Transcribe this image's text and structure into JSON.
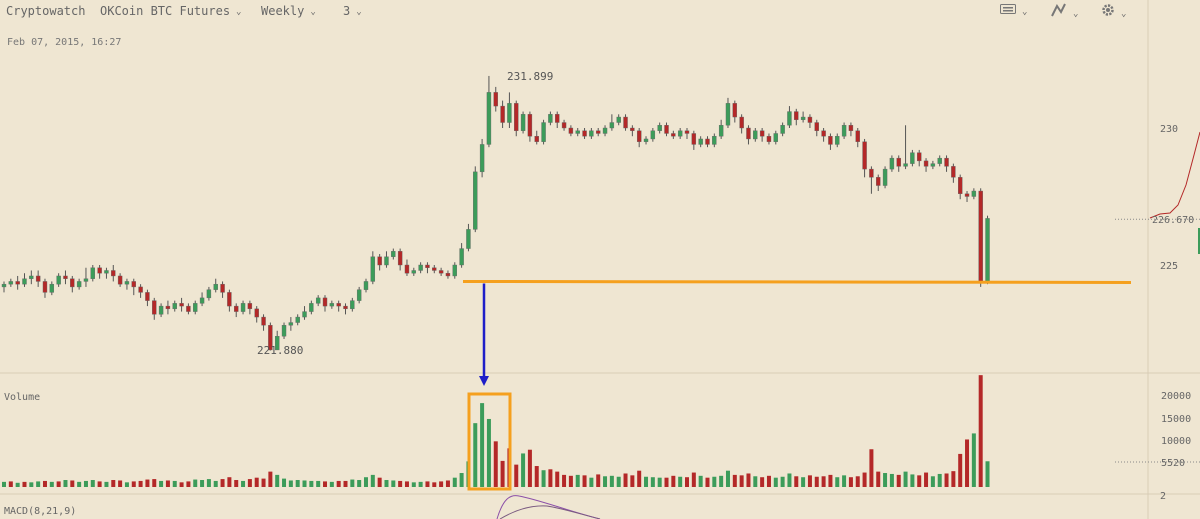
{
  "toolbar": {
    "brand": "Cryptowatch",
    "market": "OKCoin BTC Futures",
    "period": "Weekly",
    "zoom": "3",
    "icons": [
      "keyboard-icon",
      "draw-tool-icon",
      "settings-gear-icon"
    ]
  },
  "timestamp": "Feb 07, 2015, 16:27",
  "colors": {
    "up": "#3c9c5a",
    "down": "#b42828",
    "orange": "#f5a01e",
    "blue": "#1e1ec8",
    "macd": "#8b4fa8"
  },
  "chart_data": {
    "type": "candlestick",
    "price_ticks": [
      "230",
      "225"
    ],
    "last_price_label": "226.670",
    "high_annotation": "231.899",
    "low_annotation": "221.880",
    "support_level": 224.4,
    "volume_label": "Volume",
    "volume_ticks": [
      "20000",
      "15000",
      "10000",
      "5520"
    ],
    "macd_label": "MACD(8,21,9)",
    "macd_tick": "2",
    "candles": [
      [
        224.2,
        224.3,
        224.0,
        224.4
      ],
      [
        224.3,
        224.4,
        224.2,
        224.5
      ],
      [
        224.4,
        224.3,
        224.1,
        224.6
      ],
      [
        224.3,
        224.5,
        224.2,
        224.7
      ],
      [
        224.5,
        224.6,
        224.3,
        224.8
      ],
      [
        224.6,
        224.4,
        224.2,
        224.8
      ],
      [
        224.4,
        224.0,
        223.8,
        224.5
      ],
      [
        224.0,
        224.3,
        223.9,
        224.4
      ],
      [
        224.3,
        224.6,
        224.2,
        224.7
      ],
      [
        224.6,
        224.5,
        224.3,
        224.8
      ],
      [
        224.5,
        224.2,
        224.0,
        224.6
      ],
      [
        224.2,
        224.4,
        224.1,
        224.5
      ],
      [
        224.4,
        224.5,
        224.2,
        224.9
      ],
      [
        224.5,
        224.9,
        224.4,
        225.0
      ],
      [
        224.9,
        224.7,
        224.5,
        225.0
      ],
      [
        224.7,
        224.8,
        224.5,
        224.9
      ],
      [
        224.8,
        224.6,
        224.4,
        225.0
      ],
      [
        224.6,
        224.3,
        224.2,
        224.7
      ],
      [
        224.3,
        224.4,
        224.1,
        224.5
      ],
      [
        224.4,
        224.2,
        223.9,
        224.5
      ],
      [
        224.2,
        224.0,
        223.8,
        224.3
      ],
      [
        224.0,
        223.7,
        223.5,
        224.1
      ],
      [
        223.7,
        223.2,
        223.0,
        223.8
      ],
      [
        223.2,
        223.5,
        223.1,
        223.6
      ],
      [
        223.5,
        223.4,
        223.2,
        223.7
      ],
      [
        223.4,
        223.6,
        223.3,
        223.7
      ],
      [
        223.6,
        223.5,
        223.3,
        223.8
      ],
      [
        223.5,
        223.3,
        223.2,
        223.6
      ],
      [
        223.3,
        223.6,
        223.2,
        223.7
      ],
      [
        223.6,
        223.8,
        223.5,
        224.0
      ],
      [
        223.8,
        224.1,
        223.7,
        224.2
      ],
      [
        224.1,
        224.3,
        224.0,
        224.5
      ],
      [
        224.3,
        224.0,
        223.8,
        224.4
      ],
      [
        224.0,
        223.5,
        223.3,
        224.1
      ],
      [
        223.5,
        223.3,
        223.1,
        223.6
      ],
      [
        223.3,
        223.6,
        223.2,
        223.7
      ],
      [
        223.6,
        223.4,
        223.2,
        223.7
      ],
      [
        223.4,
        223.1,
        222.9,
        223.5
      ],
      [
        223.1,
        222.8,
        222.6,
        223.2
      ],
      [
        222.8,
        221.9,
        221.88,
        222.9
      ],
      [
        221.9,
        222.4,
        221.9,
        222.6
      ],
      [
        222.4,
        222.8,
        222.3,
        222.9
      ],
      [
        222.8,
        222.9,
        222.6,
        223.1
      ],
      [
        222.9,
        223.1,
        222.8,
        223.2
      ],
      [
        223.1,
        223.3,
        223.0,
        223.5
      ],
      [
        223.3,
        223.6,
        223.2,
        223.7
      ],
      [
        223.6,
        223.8,
        223.5,
        223.9
      ],
      [
        223.8,
        223.5,
        223.3,
        223.9
      ],
      [
        223.5,
        223.6,
        223.4,
        223.7
      ],
      [
        223.6,
        223.5,
        223.3,
        223.7
      ],
      [
        223.5,
        223.4,
        223.2,
        223.6
      ],
      [
        223.4,
        223.7,
        223.3,
        223.8
      ],
      [
        223.7,
        224.1,
        223.6,
        224.2
      ],
      [
        224.1,
        224.4,
        224.0,
        224.5
      ],
      [
        224.4,
        225.3,
        224.3,
        225.5
      ],
      [
        225.3,
        225.0,
        224.8,
        225.4
      ],
      [
        225.0,
        225.3,
        224.9,
        225.5
      ],
      [
        225.3,
        225.5,
        225.2,
        225.6
      ],
      [
        225.5,
        225.0,
        224.8,
        225.6
      ],
      [
        225.0,
        224.7,
        224.6,
        225.2
      ],
      [
        224.7,
        224.8,
        224.6,
        224.9
      ],
      [
        224.8,
        225.0,
        224.7,
        225.1
      ],
      [
        225.0,
        224.9,
        224.7,
        225.1
      ],
      [
        224.9,
        224.8,
        224.7,
        225.0
      ],
      [
        224.8,
        224.7,
        224.6,
        224.9
      ],
      [
        224.7,
        224.6,
        224.5,
        224.8
      ],
      [
        224.6,
        225.0,
        224.5,
        225.1
      ],
      [
        225.0,
        225.6,
        224.9,
        225.8
      ],
      [
        225.6,
        226.3,
        225.5,
        226.5
      ],
      [
        226.3,
        228.4,
        226.2,
        228.6
      ],
      [
        228.4,
        229.4,
        228.2,
        229.6
      ],
      [
        229.4,
        231.3,
        229.3,
        231.9
      ],
      [
        231.3,
        230.8,
        230.6,
        231.5
      ],
      [
        230.8,
        230.2,
        230.0,
        231.0
      ],
      [
        230.2,
        230.9,
        230.0,
        231.3
      ],
      [
        230.9,
        229.9,
        229.7,
        231.0
      ],
      [
        229.9,
        230.5,
        229.8,
        230.6
      ],
      [
        230.5,
        229.7,
        229.5,
        230.6
      ],
      [
        229.7,
        229.5,
        229.4,
        229.9
      ],
      [
        229.5,
        230.2,
        229.4,
        230.3
      ],
      [
        230.2,
        230.5,
        230.1,
        230.6
      ],
      [
        230.5,
        230.2,
        230.0,
        230.6
      ],
      [
        230.2,
        230.0,
        229.9,
        230.3
      ],
      [
        230.0,
        229.8,
        229.7,
        230.1
      ],
      [
        229.8,
        229.9,
        229.7,
        230.0
      ],
      [
        229.9,
        229.7,
        229.6,
        230.0
      ],
      [
        229.7,
        229.9,
        229.6,
        230.0
      ],
      [
        229.9,
        229.8,
        229.7,
        230.0
      ],
      [
        229.8,
        230.0,
        229.7,
        230.1
      ],
      [
        230.0,
        230.2,
        229.9,
        230.5
      ],
      [
        230.2,
        230.4,
        230.1,
        230.5
      ],
      [
        230.4,
        230.0,
        229.9,
        230.5
      ],
      [
        230.0,
        229.9,
        229.7,
        230.1
      ],
      [
        229.9,
        229.5,
        229.3,
        230.0
      ],
      [
        229.5,
        229.6,
        229.4,
        229.7
      ],
      [
        229.6,
        229.9,
        229.5,
        230.0
      ],
      [
        229.9,
        230.1,
        229.8,
        230.2
      ],
      [
        230.1,
        229.8,
        229.7,
        230.2
      ],
      [
        229.8,
        229.7,
        229.6,
        229.9
      ],
      [
        229.7,
        229.9,
        229.6,
        230.0
      ],
      [
        229.9,
        229.8,
        229.6,
        230.0
      ],
      [
        229.8,
        229.4,
        229.2,
        229.9
      ],
      [
        229.4,
        229.6,
        229.3,
        229.7
      ],
      [
        229.6,
        229.4,
        229.3,
        229.7
      ],
      [
        229.4,
        229.7,
        229.3,
        229.8
      ],
      [
        229.7,
        230.1,
        229.6,
        230.3
      ],
      [
        230.1,
        230.9,
        230.0,
        231.1
      ],
      [
        230.9,
        230.4,
        230.2,
        231.0
      ],
      [
        230.4,
        230.0,
        229.8,
        230.5
      ],
      [
        230.0,
        229.6,
        229.4,
        230.1
      ],
      [
        229.6,
        229.9,
        229.5,
        230.0
      ],
      [
        229.9,
        229.7,
        229.5,
        230.0
      ],
      [
        229.7,
        229.5,
        229.4,
        229.8
      ],
      [
        229.5,
        229.8,
        229.4,
        229.9
      ],
      [
        229.8,
        230.1,
        229.7,
        230.2
      ],
      [
        230.1,
        230.6,
        230.0,
        230.8
      ],
      [
        230.6,
        230.3,
        230.1,
        230.7
      ],
      [
        230.3,
        230.4,
        230.2,
        230.6
      ],
      [
        230.4,
        230.2,
        230.0,
        230.5
      ],
      [
        230.2,
        229.9,
        229.7,
        230.3
      ],
      [
        229.9,
        229.7,
        229.5,
        230.0
      ],
      [
        229.7,
        229.4,
        229.2,
        229.8
      ],
      [
        229.4,
        229.7,
        229.3,
        229.8
      ],
      [
        229.7,
        230.1,
        229.6,
        230.2
      ],
      [
        230.1,
        229.9,
        229.7,
        230.2
      ],
      [
        229.9,
        229.5,
        229.3,
        230.0
      ],
      [
        229.5,
        228.5,
        228.2,
        229.6
      ],
      [
        228.5,
        228.2,
        227.6,
        228.6
      ],
      [
        228.2,
        227.9,
        227.7,
        228.3
      ],
      [
        227.9,
        228.5,
        227.8,
        228.6
      ],
      [
        228.5,
        228.9,
        228.4,
        229.0
      ],
      [
        228.9,
        228.6,
        228.4,
        229.0
      ],
      [
        228.6,
        228.7,
        228.5,
        230.1
      ],
      [
        228.7,
        229.1,
        228.6,
        229.2
      ],
      [
        229.1,
        228.8,
        228.6,
        229.2
      ],
      [
        228.8,
        228.6,
        228.4,
        228.9
      ],
      [
        228.6,
        228.7,
        228.5,
        228.8
      ],
      [
        228.7,
        228.9,
        228.6,
        229.0
      ],
      [
        228.9,
        228.6,
        228.4,
        229.0
      ],
      [
        228.6,
        228.2,
        228.0,
        228.7
      ],
      [
        228.2,
        227.6,
        227.4,
        228.3
      ],
      [
        227.6,
        227.5,
        227.3,
        227.7
      ],
      [
        227.5,
        227.7,
        227.4,
        227.8
      ],
      [
        227.7,
        224.4,
        224.2,
        227.8
      ],
      [
        224.4,
        226.7,
        224.3,
        226.8
      ]
    ],
    "volume": [
      [
        1100,
        1
      ],
      [
        1200,
        0
      ],
      [
        900,
        1
      ],
      [
        1100,
        0
      ],
      [
        1000,
        1
      ],
      [
        1200,
        1
      ],
      [
        1300,
        0
      ],
      [
        1100,
        1
      ],
      [
        1200,
        0
      ],
      [
        1500,
        1
      ],
      [
        1400,
        0
      ],
      [
        1100,
        1
      ],
      [
        1300,
        1
      ],
      [
        1500,
        1
      ],
      [
        1200,
        0
      ],
      [
        1100,
        1
      ],
      [
        1500,
        0
      ],
      [
        1400,
        0
      ],
      [
        1000,
        1
      ],
      [
        1200,
        0
      ],
      [
        1300,
        0
      ],
      [
        1600,
        0
      ],
      [
        1700,
        0
      ],
      [
        1300,
        1
      ],
      [
        1400,
        0
      ],
      [
        1300,
        1
      ],
      [
        1000,
        0
      ],
      [
        1200,
        0
      ],
      [
        1600,
        1
      ],
      [
        1500,
        1
      ],
      [
        1700,
        1
      ],
      [
        1300,
        1
      ],
      [
        1700,
        0
      ],
      [
        2100,
        0
      ],
      [
        1500,
        0
      ],
      [
        1300,
        1
      ],
      [
        1700,
        0
      ],
      [
        2000,
        0
      ],
      [
        1800,
        0
      ],
      [
        3300,
        0
      ],
      [
        2600,
        1
      ],
      [
        1800,
        1
      ],
      [
        1400,
        1
      ],
      [
        1500,
        1
      ],
      [
        1400,
        1
      ],
      [
        1300,
        1
      ],
      [
        1300,
        1
      ],
      [
        1200,
        0
      ],
      [
        1100,
        1
      ],
      [
        1300,
        0
      ],
      [
        1300,
        0
      ],
      [
        1600,
        1
      ],
      [
        1500,
        1
      ],
      [
        2100,
        1
      ],
      [
        2600,
        1
      ],
      [
        2000,
        0
      ],
      [
        1500,
        1
      ],
      [
        1400,
        1
      ],
      [
        1300,
        0
      ],
      [
        1200,
        0
      ],
      [
        1000,
        1
      ],
      [
        1100,
        1
      ],
      [
        1200,
        0
      ],
      [
        1000,
        0
      ],
      [
        1200,
        0
      ],
      [
        1400,
        0
      ],
      [
        2000,
        1
      ],
      [
        3000,
        1
      ],
      [
        5500,
        1
      ],
      [
        13700,
        1
      ],
      [
        18000,
        1
      ],
      [
        14600,
        1
      ],
      [
        9800,
        0
      ],
      [
        5600,
        0
      ],
      [
        8300,
        0
      ],
      [
        4800,
        0
      ],
      [
        7200,
        1
      ],
      [
        8000,
        0
      ],
      [
        4500,
        0
      ],
      [
        3600,
        1
      ],
      [
        3800,
        0
      ],
      [
        3300,
        0
      ],
      [
        2600,
        0
      ],
      [
        2400,
        0
      ],
      [
        2600,
        1
      ],
      [
        2500,
        0
      ],
      [
        2000,
        1
      ],
      [
        2700,
        0
      ],
      [
        2300,
        1
      ],
      [
        2400,
        1
      ],
      [
        2200,
        1
      ],
      [
        2900,
        0
      ],
      [
        2500,
        0
      ],
      [
        3500,
        0
      ],
      [
        2200,
        1
      ],
      [
        2100,
        1
      ],
      [
        2000,
        1
      ],
      [
        2000,
        0
      ],
      [
        2400,
        0
      ],
      [
        2200,
        1
      ],
      [
        2100,
        0
      ],
      [
        3100,
        0
      ],
      [
        2400,
        1
      ],
      [
        2000,
        0
      ],
      [
        2200,
        1
      ],
      [
        2400,
        1
      ],
      [
        3500,
        1
      ],
      [
        2600,
        0
      ],
      [
        2500,
        0
      ],
      [
        2900,
        0
      ],
      [
        2300,
        1
      ],
      [
        2100,
        0
      ],
      [
        2400,
        0
      ],
      [
        2000,
        1
      ],
      [
        2200,
        1
      ],
      [
        2900,
        1
      ],
      [
        2300,
        0
      ],
      [
        2100,
        1
      ],
      [
        2500,
        0
      ],
      [
        2200,
        0
      ],
      [
        2300,
        0
      ],
      [
        2600,
        0
      ],
      [
        2100,
        1
      ],
      [
        2500,
        1
      ],
      [
        2100,
        0
      ],
      [
        2300,
        0
      ],
      [
        3100,
        0
      ],
      [
        8100,
        0
      ],
      [
        3300,
        0
      ],
      [
        3000,
        1
      ],
      [
        2800,
        1
      ],
      [
        2600,
        0
      ],
      [
        3300,
        1
      ],
      [
        2700,
        1
      ],
      [
        2500,
        0
      ],
      [
        3100,
        0
      ],
      [
        2300,
        1
      ],
      [
        2800,
        1
      ],
      [
        2900,
        0
      ],
      [
        3400,
        0
      ],
      [
        7100,
        0
      ],
      [
        10200,
        0
      ],
      [
        11500,
        1
      ],
      [
        24000,
        0
      ],
      [
        5520,
        1
      ]
    ]
  }
}
